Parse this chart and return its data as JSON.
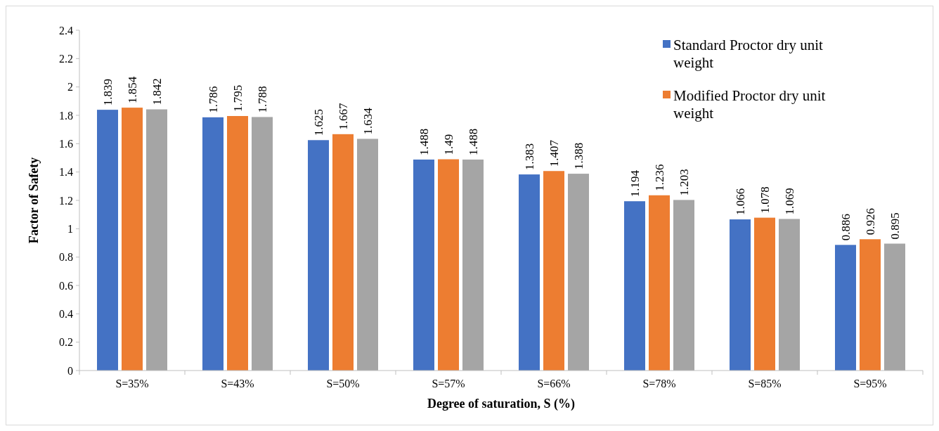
{
  "chart_data": {
    "type": "bar",
    "ylabel": "Factor of Safety",
    "xlabel": "Degree of saturation, S (%)",
    "categories": [
      "S=35%",
      "S=43%",
      "S=50%",
      "S=57%",
      "S=66%",
      "S=78%",
      "S=85%",
      "S=95%"
    ],
    "series": [
      {
        "name": "Standard Proctor dry unit weight",
        "color": "#4472c4",
        "values": [
          1.839,
          1.786,
          1.625,
          1.488,
          1.383,
          1.194,
          1.066,
          0.886
        ]
      },
      {
        "name": "Modified Proctor dry unit weight",
        "color": "#ed7d31",
        "values": [
          1.854,
          1.795,
          1.667,
          1.49,
          1.407,
          1.236,
          1.078,
          0.926
        ]
      },
      {
        "color": "#a5a5a5",
        "values": [
          1.842,
          1.788,
          1.634,
          1.488,
          1.388,
          1.203,
          1.069,
          0.895
        ]
      }
    ],
    "ylim": [
      0,
      2.4
    ],
    "yticks": [
      0,
      0.2,
      0.4,
      0.6,
      0.8,
      1,
      1.2,
      1.4,
      1.6,
      1.8,
      2,
      2.2,
      2.4
    ],
    "data_labels": true,
    "legend": "top right",
    "grid": false
  }
}
